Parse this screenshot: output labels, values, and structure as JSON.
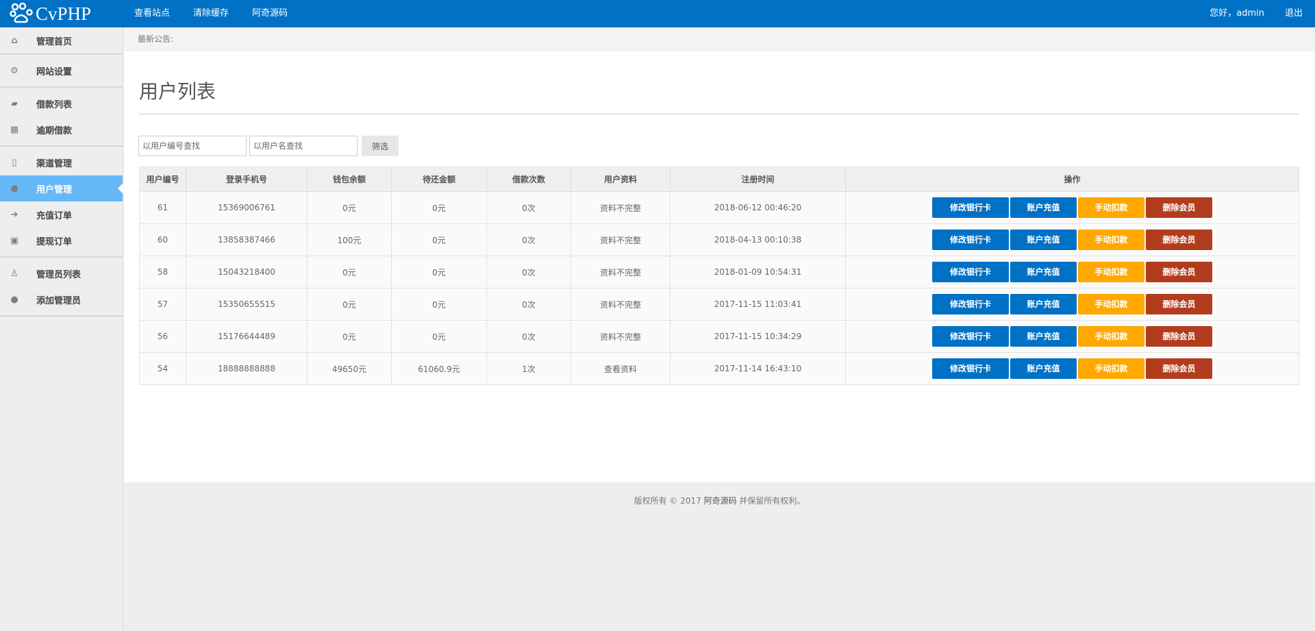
{
  "header": {
    "logo": "CvPHP",
    "nav": [
      "查看站点",
      "清除缓存",
      "阿奇源码"
    ],
    "greeting": "您好，admin",
    "logout": "退出"
  },
  "sidebar": {
    "groups": [
      [
        {
          "label": "管理首页",
          "icon": "home-icon"
        }
      ],
      [
        {
          "label": "网站设置",
          "icon": "gear-icon"
        }
      ],
      [
        {
          "label": "借款列表",
          "icon": "book-icon"
        },
        {
          "label": "逾期借款",
          "icon": "table-icon"
        }
      ],
      [
        {
          "label": "渠道管理",
          "icon": "bookmark-icon"
        },
        {
          "label": "用户管理",
          "icon": "user-icon",
          "active": true
        },
        {
          "label": "充值订单",
          "icon": "sign-in-icon"
        },
        {
          "label": "提现订单",
          "icon": "money-icon"
        }
      ],
      [
        {
          "label": "管理员列表",
          "icon": "user-outline-icon"
        },
        {
          "label": "添加管理员",
          "icon": "user-icon"
        }
      ]
    ]
  },
  "notice": "最新公告:",
  "page_title": "用户列表",
  "search": {
    "id_placeholder": "以用户编号查找",
    "name_placeholder": "以用户名查找",
    "filter": "筛选"
  },
  "table": {
    "headers": [
      "用户编号",
      "登录手机号",
      "钱包余额",
      "待还金额",
      "借款次数",
      "用户资料",
      "注册时间",
      "操作"
    ],
    "rows": [
      [
        "61",
        "15369006761",
        "0元",
        "0元",
        "0次",
        "资料不完整",
        "2018-06-12 00:46:20"
      ],
      [
        "60",
        "13858387466",
        "100元",
        "0元",
        "0次",
        "资料不完整",
        "2018-04-13 00:10:38"
      ],
      [
        "58",
        "15043218400",
        "0元",
        "0元",
        "0次",
        "资料不完整",
        "2018-01-09 10:54:31"
      ],
      [
        "57",
        "15350655515",
        "0元",
        "0元",
        "0次",
        "资料不完整",
        "2017-11-15 11:03:41"
      ],
      [
        "56",
        "15176644489",
        "0元",
        "0元",
        "0次",
        "资料不完整",
        "2017-11-15 10:34:29"
      ],
      [
        "54",
        "18888888888",
        "49650元",
        "61060.9元",
        "1次",
        "查看资料",
        "2017-11-14 16:43:10"
      ]
    ],
    "actions": [
      "修改银行卡",
      "账户充值",
      "手动扣款",
      "删除会员"
    ]
  },
  "footer": {
    "prefix": "版权所有 © 2017 ",
    "link": "阿奇源码",
    "suffix": " 并保留所有权利。"
  },
  "colors": {
    "header": "#0071c5",
    "active": "#67b8f7",
    "orange": "#ffa800",
    "red": "#b23d1e"
  }
}
